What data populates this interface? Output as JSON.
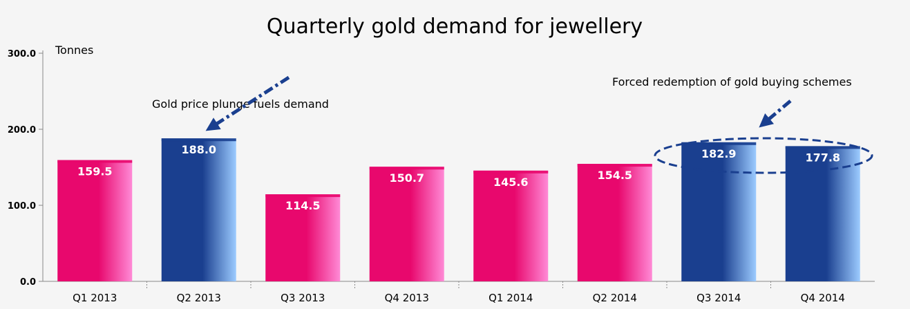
{
  "chart_data": {
    "type": "bar",
    "title": "Quarterly gold demand for jewellery",
    "ylabel": "Tonnes",
    "xlabel": "",
    "ylim": [
      0,
      300
    ],
    "yticks": [
      0,
      100,
      200,
      300
    ],
    "ytick_labels": [
      "0.0",
      "100.0",
      "200.0",
      "300.0"
    ],
    "grid": false,
    "categories": [
      "Q1 2013",
      "Q2 2013",
      "Q3 2013",
      "Q4 2013",
      "Q1 2014",
      "Q2 2014",
      "Q3 2014",
      "Q4 2014"
    ],
    "values": [
      159.5,
      188.0,
      114.5,
      150.7,
      145.6,
      154.5,
      182.9,
      177.8
    ],
    "value_labels": [
      "159.5",
      "188.0",
      "114.5",
      "150.7",
      "145.6",
      "154.5",
      "182.9",
      "177.8"
    ],
    "bar_colors": [
      "pink",
      "blue",
      "pink",
      "pink",
      "pink",
      "pink",
      "blue",
      "blue"
    ],
    "annotations": [
      {
        "text": "Gold price plunge fuels demand",
        "target_category": "Q2 2013",
        "marker": "dash-dot arrow"
      },
      {
        "text": "Forced redemption of gold buying schemes",
        "target_categories": [
          "Q3 2014",
          "Q4 2014"
        ],
        "marker": "dashed ellipse with dash-dot arrow"
      }
    ]
  },
  "colors": {
    "background": "#f5f5f5",
    "pink": "#e8086d",
    "pink_light": "#ff8ad6",
    "blue": "#1a3f8f",
    "blue_light": "#9ccbff",
    "annotation": "#1a3f8f",
    "axis": "#888888",
    "text": "#000000",
    "value_label": "#ffffff"
  }
}
